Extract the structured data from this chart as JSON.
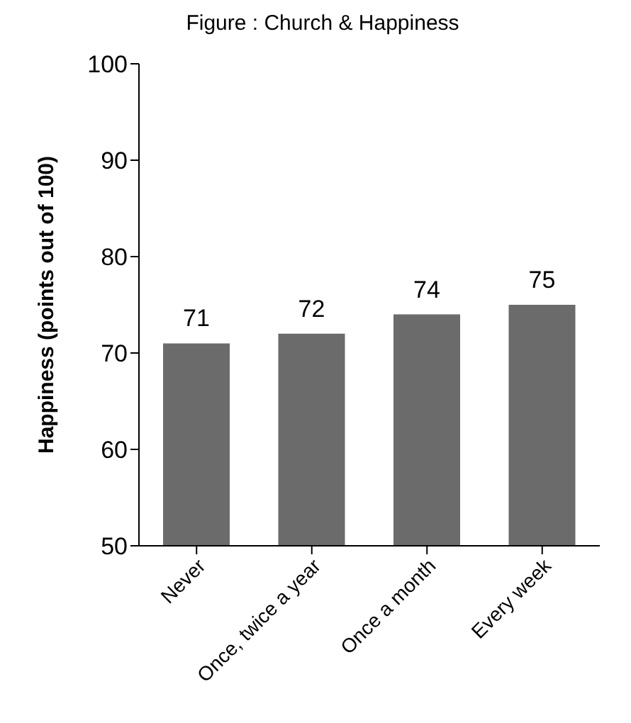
{
  "chart_data": {
    "type": "bar",
    "title": "Figure : Church & Happiness",
    "ylabel": "Happiness (points out of 100)",
    "categories": [
      "Never",
      "Once, twice a year",
      "Once a month",
      "Every week"
    ],
    "values": [
      71,
      72,
      74,
      75
    ],
    "color": "#6b6b6b",
    "ylim": [
      50,
      100
    ],
    "yticks": [
      50,
      60,
      70,
      80,
      90,
      100
    ],
    "grid": false,
    "data_labels": true
  }
}
